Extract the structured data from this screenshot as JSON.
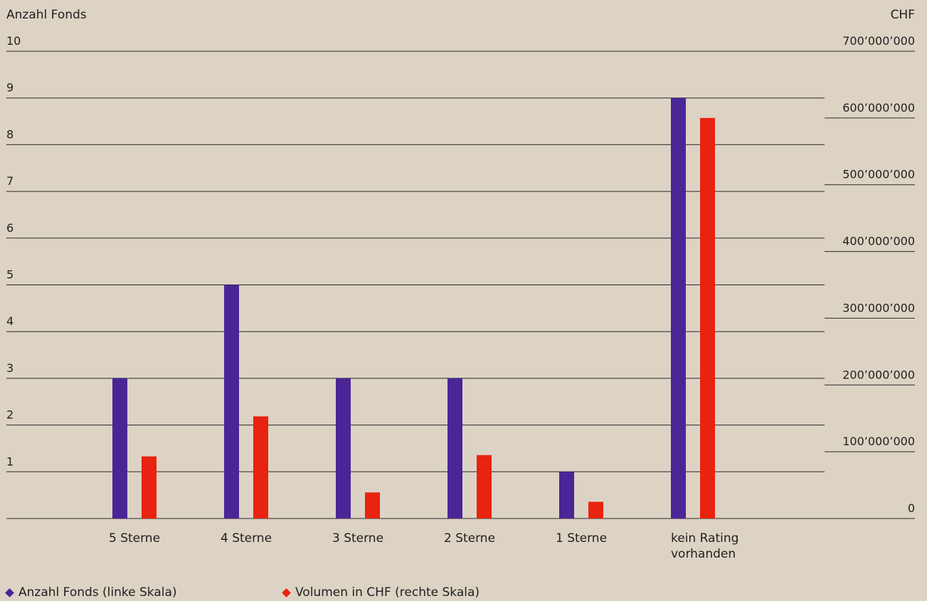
{
  "chart_data": {
    "type": "bar",
    "left_axis_label": "Anzahl Fonds",
    "right_axis_label": "CHF",
    "categories": [
      "5 Sterne",
      "4 Sterne",
      "3 Sterne",
      "2 Sterne",
      "1 Sterne",
      "kein Rating\nvorhanden"
    ],
    "series": [
      {
        "name": "Anzahl Fonds (linke Skala)",
        "axis": "left",
        "color": "#4a2596",
        "values": [
          3,
          5,
          3,
          3,
          1,
          9
        ]
      },
      {
        "name": "Volumen in CHF (rechte Skala)",
        "axis": "right",
        "color": "#e8230f",
        "values": [
          93000000,
          153000000,
          39000000,
          95000000,
          25000000,
          600000000
        ]
      }
    ],
    "left_ylim": [
      0,
      10
    ],
    "left_ticks": [
      "0",
      "1",
      "2",
      "3",
      "4",
      "5",
      "6",
      "7",
      "8",
      "9",
      "10"
    ],
    "right_ylim": [
      0,
      700000000
    ],
    "right_ticks": [
      "0",
      "100’000’000",
      "200’000’000",
      "300’000’000",
      "400’000’000",
      "500’000’000",
      "600’000’000",
      "700’000’000"
    ],
    "grid": true,
    "legend_position": "bottom-left"
  }
}
